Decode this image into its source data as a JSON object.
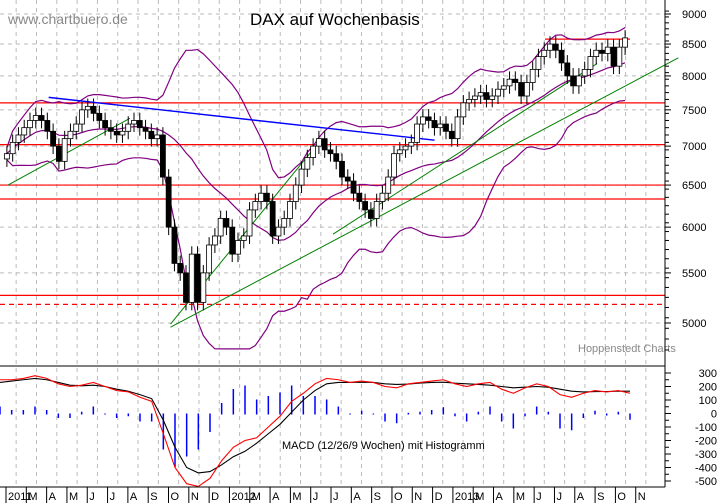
{
  "header": {
    "watermark": "www.chartbuero.de",
    "title": "DAX auf Wochenbasis",
    "source": "Hoppenstedt Charts"
  },
  "macd_label": "MACD (12/26/9 Wochen) mit Histogramm",
  "colors": {
    "candle_up_fill": "#ffffff",
    "candle_down_fill": "#000000",
    "bollinger": "#800080",
    "resistance": "#ff0000",
    "downtrend": "#0000ff",
    "uptrend": "#008000",
    "macd_line": "#ff0000",
    "signal_line": "#000000",
    "histogram": "#0000ff",
    "grid": "#bbbbbb"
  },
  "chart_data": [
    {
      "type": "candlestick",
      "title": "DAX auf Wochenbasis",
      "xlabel": "",
      "ylabel": "",
      "y_ticks": [
        5000,
        5500,
        6000,
        6500,
        7000,
        7500,
        8000,
        8500,
        9000
      ],
      "ylim": [
        4700,
        9150
      ],
      "x_ticks": [
        "2011",
        "M",
        "A",
        "M",
        "J",
        "J",
        "A",
        "S",
        "O",
        "N",
        "D",
        "2012",
        "M",
        "A",
        "M",
        "J",
        "J",
        "A",
        "S",
        "O",
        "N",
        "D",
        "2013",
        "M",
        "A",
        "M",
        "J",
        "J",
        "A",
        "S",
        "O",
        "N"
      ],
      "grid": true,
      "horizontal_lines": [
        {
          "level": 8580,
          "style": "solid",
          "color": "red",
          "from": "2013-04"
        },
        {
          "level": 7600,
          "style": "solid",
          "color": "red"
        },
        {
          "level": 7020,
          "style": "solid",
          "color": "red"
        },
        {
          "level": 6500,
          "style": "solid",
          "color": "red"
        },
        {
          "level": 6330,
          "style": "solid",
          "color": "red"
        },
        {
          "level": 5270,
          "style": "solid",
          "color": "red"
        },
        {
          "level": 5180,
          "style": "dashed",
          "color": "red"
        }
      ],
      "trendlines": [
        {
          "color": "blue",
          "from": [
            "2011-03",
            7680
          ],
          "to": [
            "2012-10",
            7080
          ]
        },
        {
          "color": "green",
          "from": [
            "2011-01",
            6500
          ],
          "to": [
            "2011-07",
            7380
          ]
        },
        {
          "color": "green",
          "from": [
            "2011-09",
            4990
          ],
          "to": [
            "2012-04",
            6950
          ]
        },
        {
          "color": "green",
          "from": [
            "2011-09",
            4960
          ],
          "to": [
            "2013-10",
            8280
          ]
        },
        {
          "color": "green",
          "from": [
            "2012-05",
            5920
          ],
          "to": [
            "2013-06",
            8190
          ]
        }
      ],
      "indicators": [
        "Bollinger Bands (upper, middle, lower)"
      ],
      "weekly_close_approx": [
        6900,
        7050,
        7150,
        7250,
        7350,
        7420,
        7350,
        7200,
        7000,
        6800,
        7100,
        7200,
        7300,
        7500,
        7550,
        7450,
        7350,
        7250,
        7200,
        7150,
        7200,
        7300,
        7350,
        7250,
        7200,
        7100,
        7150,
        6600,
        6000,
        5600,
        5500,
        5200,
        5700,
        5200,
        5500,
        5800,
        5900,
        6100,
        6000,
        5700,
        5850,
        5900,
        6200,
        6300,
        6400,
        6300,
        5900,
        6000,
        6100,
        6300,
        6500,
        6700,
        6850,
        7000,
        7100,
        6950,
        6900,
        6800,
        6600,
        6550,
        6400,
        6300,
        6200,
        6100,
        6300,
        6400,
        6600,
        6900,
        6950,
        7000,
        7050,
        7300,
        7400,
        7350,
        7250,
        7300,
        7200,
        7100,
        7400,
        7600,
        7650,
        7700,
        7750,
        7650,
        7700,
        7800,
        7850,
        7950,
        7900,
        7700,
        7900,
        8100,
        8300,
        8400,
        8500,
        8400,
        8200,
        8000,
        7850,
        8000,
        8100,
        8300,
        8400,
        8350,
        8450,
        8150,
        8450,
        8600
      ]
    },
    {
      "type": "line",
      "title": "MACD (12/26/9 Wochen) mit Histogramm",
      "y_ticks": [
        300,
        200,
        100,
        0,
        -100,
        -200,
        -300,
        -400,
        -500
      ],
      "ylim": [
        -530,
        330
      ],
      "series": [
        {
          "name": "MACD",
          "color": "red"
        },
        {
          "name": "Signal",
          "color": "black"
        },
        {
          "name": "Histogramm",
          "type": "bar",
          "color": "blue"
        }
      ],
      "macd_approx": [
        250,
        250,
        260,
        280,
        260,
        220,
        200,
        210,
        230,
        200,
        170,
        160,
        120,
        90,
        -150,
        -400,
        -520,
        -540,
        -480,
        -350,
        -250,
        -200,
        -180,
        -100,
        -20,
        90,
        150,
        220,
        260,
        250,
        230,
        240,
        230,
        200,
        190,
        220,
        230,
        240,
        250,
        220,
        200,
        220,
        230,
        180,
        150,
        190,
        220,
        200,
        140,
        120,
        150,
        170,
        160,
        170,
        150
      ],
      "signal_approx": [
        230,
        240,
        250,
        260,
        250,
        230,
        210,
        205,
        210,
        200,
        180,
        165,
        140,
        110,
        -50,
        -250,
        -400,
        -440,
        -430,
        -380,
        -320,
        -280,
        -220,
        -150,
        -80,
        10,
        100,
        170,
        220,
        230,
        230,
        232,
        230,
        220,
        215,
        218,
        225,
        230,
        232,
        225,
        220,
        215,
        210,
        200,
        190,
        195,
        200,
        195,
        180,
        165,
        160,
        162,
        163,
        165,
        165
      ]
    }
  ]
}
